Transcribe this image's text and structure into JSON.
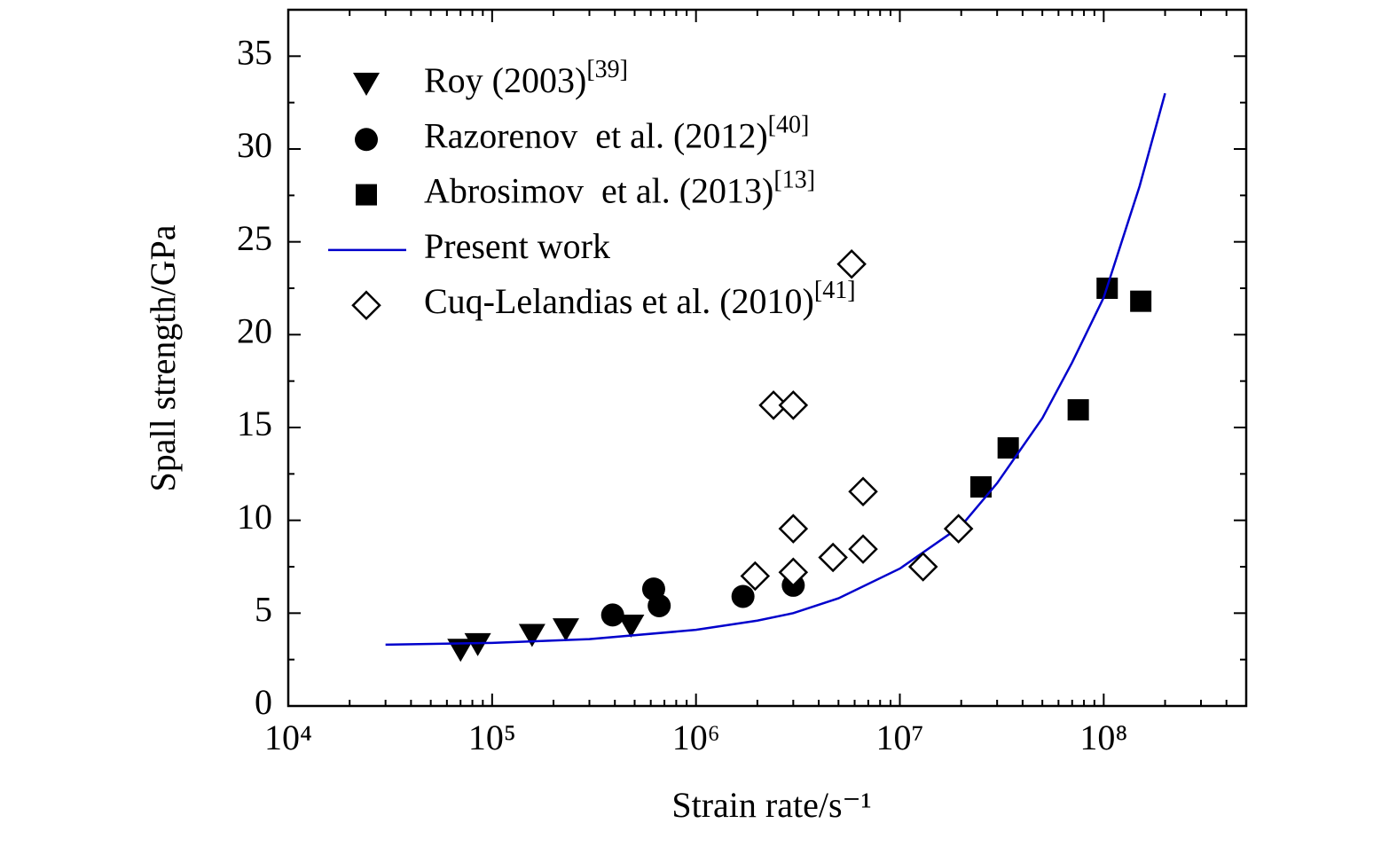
{
  "chart_data": {
    "type": "scatter",
    "xlabel": "Strain rate/s⁻¹",
    "ylabel": "Spall strength/GPa",
    "xscale": "log",
    "xlim": [
      10000,
      500000000
    ],
    "ylim": [
      0,
      37.5
    ],
    "xticks": [
      {
        "value": 10000,
        "label": "10⁴"
      },
      {
        "value": 100000,
        "label": "10⁵"
      },
      {
        "value": 1000000,
        "label": "10⁶"
      },
      {
        "value": 10000000,
        "label": "10⁷"
      },
      {
        "value": 100000000,
        "label": "10⁸"
      }
    ],
    "yticks": [
      0,
      5,
      10,
      15,
      20,
      25,
      30,
      35
    ],
    "legend": "upper left",
    "series": [
      {
        "name": "Roy (2003)",
        "reference": "[39]",
        "marker": "triangle-down",
        "color": "#000000",
        "x": [
          70000,
          85000,
          157000,
          230000,
          480000
        ],
        "values": [
          3.0,
          3.3,
          3.8,
          4.1,
          4.3
        ]
      },
      {
        "name": "Razorenov  et al. (2012)",
        "reference": "[40]",
        "marker": "circle",
        "color": "#000000",
        "x": [
          390000,
          620000,
          660000,
          1700000,
          3000000
        ],
        "values": [
          4.9,
          6.3,
          5.4,
          5.9,
          6.5
        ]
      },
      {
        "name": "Abrosimov  et al. (2013)",
        "reference": "[13]",
        "marker": "square",
        "color": "#000000",
        "x": [
          25000000,
          34000000,
          75000000,
          104000000,
          152000000
        ],
        "values": [
          11.8,
          13.9,
          15.95,
          22.5,
          21.8
        ]
      },
      {
        "name": "Present work",
        "marker": "line",
        "color": "#0000cc",
        "x": [
          30000,
          100000,
          300000,
          1000000,
          2000000,
          3000000,
          5000000,
          10000000,
          20000000,
          30000000,
          50000000,
          70000000,
          100000000,
          150000000,
          200000000
        ],
        "values": [
          3.3,
          3.4,
          3.6,
          4.1,
          4.6,
          5.0,
          5.8,
          7.4,
          9.7,
          12,
          15.5,
          18.5,
          22,
          28,
          33
        ]
      },
      {
        "name": "Cuq-Lelandias et al. (2010)",
        "reference": "[41]",
        "marker": "diamond-open",
        "color": "#000000",
        "x": [
          1950000,
          2400000,
          3000000,
          3000000,
          3000000,
          4700000,
          5800000,
          6600000,
          6600000,
          13000000,
          19400000
        ],
        "values": [
          7.0,
          16.2,
          16.2,
          9.55,
          7.2,
          8.0,
          23.8,
          11.55,
          8.45,
          7.5,
          9.55
        ]
      }
    ]
  }
}
